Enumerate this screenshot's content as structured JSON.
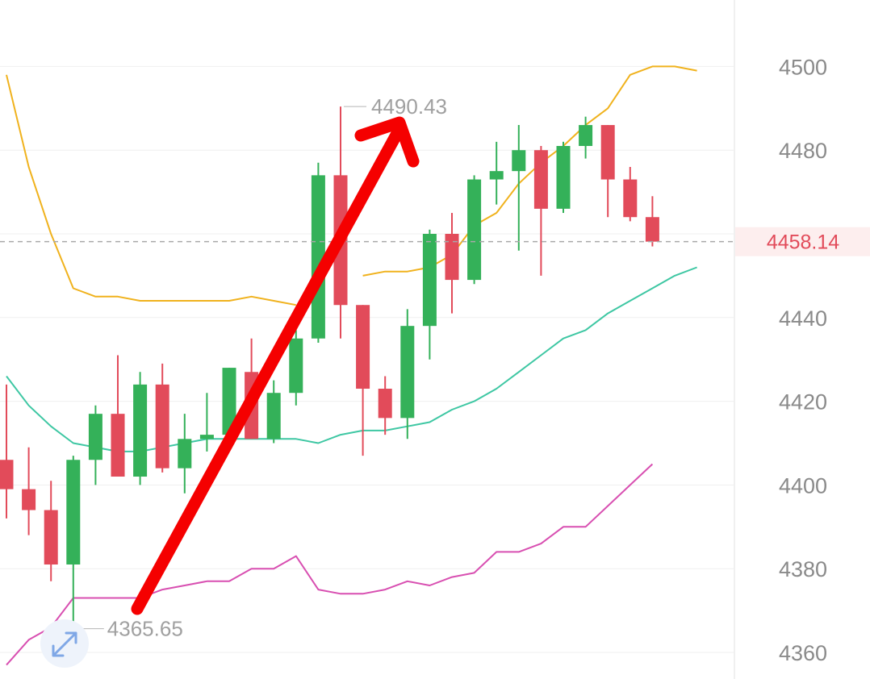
{
  "chart_data": {
    "type": "candlestick",
    "title": "",
    "xlabel": "",
    "ylabel": "",
    "ylim": [
      4356,
      4514
    ],
    "y_ticks": [
      4360,
      4380,
      4400,
      4420,
      4440,
      4460,
      4480,
      4500
    ],
    "grid": true,
    "up_color": "#34b159",
    "down_color": "#e24b5a",
    "candles": [
      {
        "o": 4406,
        "h": 4424,
        "l": 4392,
        "c": 4399
      },
      {
        "o": 4399,
        "h": 4409,
        "l": 4388,
        "c": 4394
      },
      {
        "o": 4394,
        "h": 4401,
        "l": 4377,
        "c": 4381
      },
      {
        "o": 4381,
        "h": 4407,
        "l": 4366,
        "c": 4406
      },
      {
        "o": 4406,
        "h": 4419,
        "l": 4400,
        "c": 4417
      },
      {
        "o": 4417,
        "h": 4431,
        "l": 4402,
        "c": 4402
      },
      {
        "o": 4402,
        "h": 4427,
        "l": 4400,
        "c": 4424
      },
      {
        "o": 4424,
        "h": 4429,
        "l": 4403,
        "c": 4404
      },
      {
        "o": 4404,
        "h": 4417,
        "l": 4398,
        "c": 4411
      },
      {
        "o": 4411,
        "h": 4422,
        "l": 4408,
        "c": 4412
      },
      {
        "o": 4412,
        "h": 4428,
        "l": 4410,
        "c": 4428
      },
      {
        "o": 4427,
        "h": 4435,
        "l": 4411,
        "c": 4411
      },
      {
        "o": 4411,
        "h": 4425,
        "l": 4410,
        "c": 4422
      },
      {
        "o": 4422,
        "h": 4437,
        "l": 4419,
        "c": 4435
      },
      {
        "o": 4435,
        "h": 4477,
        "l": 4434,
        "c": 4474
      },
      {
        "o": 4474,
        "h": 4490.43,
        "l": 4435,
        "c": 4443
      },
      {
        "o": 4443,
        "h": 4443,
        "l": 4407,
        "c": 4423
      },
      {
        "o": 4423,
        "h": 4426,
        "l": 4412,
        "c": 4416
      },
      {
        "o": 4416,
        "h": 4442,
        "l": 4411,
        "c": 4438
      },
      {
        "o": 4438,
        "h": 4461,
        "l": 4430,
        "c": 4460
      },
      {
        "o": 4460,
        "h": 4465,
        "l": 4441,
        "c": 4449
      },
      {
        "o": 4449,
        "h": 4474,
        "l": 4448,
        "c": 4473
      },
      {
        "o": 4473,
        "h": 4482,
        "l": 4467,
        "c": 4475
      },
      {
        "o": 4475,
        "h": 4486,
        "l": 4456,
        "c": 4480
      },
      {
        "o": 4480,
        "h": 4481,
        "l": 4450,
        "c": 4466
      },
      {
        "o": 4466,
        "h": 4482,
        "l": 4465,
        "c": 4481
      },
      {
        "o": 4481,
        "h": 4488,
        "l": 4478,
        "c": 4486
      },
      {
        "o": 4486,
        "h": 4486,
        "l": 4464,
        "c": 4473
      },
      {
        "o": 4473,
        "h": 4476,
        "l": 4463,
        "c": 4464
      },
      {
        "o": 4464,
        "h": 4469,
        "l": 4457,
        "c": 4458.14
      }
    ],
    "series": [
      {
        "color": "#f0b21d",
        "values": [
          4498,
          4476,
          4460,
          4447,
          4445,
          4445,
          4444,
          4444,
          4444,
          4444,
          4444,
          4445,
          4444,
          4443,
          null,
          null,
          4450,
          4451,
          4451,
          4452,
          4455,
          4462,
          4465,
          4472,
          4477,
          4481,
          4486,
          4490,
          4498,
          4500,
          4500,
          4499
        ]
      },
      {
        "color": "#3ec7a3",
        "values": [
          4426,
          4419,
          4414,
          4410,
          4409,
          4408,
          4408,
          4409,
          4410,
          4411,
          4411,
          4411,
          4411,
          4411,
          4410,
          4412,
          4413,
          4413,
          4414,
          4415,
          4418,
          4420,
          4423,
          4427,
          4431,
          4435,
          4437,
          4441,
          4444,
          4447,
          4450,
          4452
        ]
      },
      {
        "color": "#d84fb1",
        "values": [
          4357,
          4363,
          4366,
          4373,
          4373,
          4373,
          4373,
          4375,
          4376,
          4377,
          4377,
          4380,
          4380,
          4383,
          4375,
          4374,
          4374,
          4375,
          4377,
          4376,
          4378,
          4379,
          4384,
          4384,
          4386,
          4390,
          4390,
          4395,
          4400,
          4405
        ]
      }
    ],
    "current_price": 4458.14,
    "current_price_label": "4458.14",
    "annotations": [
      {
        "label": "4490.43",
        "value": 4490.43
      },
      {
        "label": "4365.65",
        "value": 4365.65
      }
    ],
    "arrow": {
      "color": "#f50000"
    }
  }
}
